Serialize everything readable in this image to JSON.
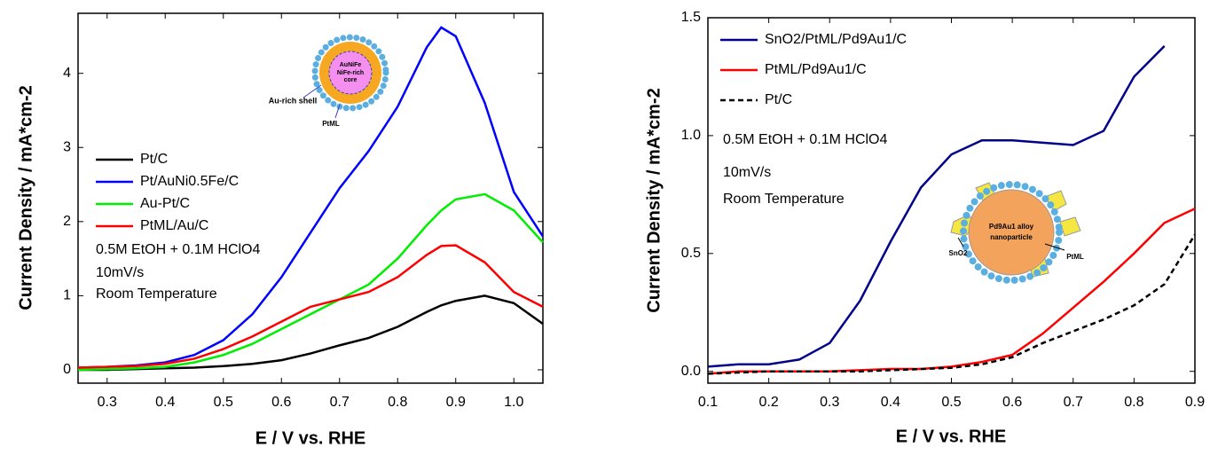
{
  "chart_data": [
    {
      "type": "line",
      "x_label": "E / V vs. RHE",
      "y_label": "Current Density / mA*cm-2",
      "x": [
        0.25,
        0.3,
        0.35,
        0.4,
        0.45,
        0.5,
        0.55,
        0.6,
        0.65,
        0.7,
        0.75,
        0.8,
        0.85,
        0.875,
        0.9,
        0.95,
        1.0,
        1.05
      ],
      "series": [
        {
          "name": "Pt/C",
          "color": "#000000",
          "values": [
            0.0,
            0.0,
            0.01,
            0.02,
            0.03,
            0.05,
            0.08,
            0.13,
            0.22,
            0.33,
            0.43,
            0.58,
            0.78,
            0.87,
            0.93,
            1.0,
            0.9,
            0.62
          ]
        },
        {
          "name": "Pt/AuNi0.5Fe/C",
          "color": "#0000ff",
          "values": [
            0.03,
            0.04,
            0.06,
            0.1,
            0.2,
            0.4,
            0.75,
            1.25,
            1.85,
            2.45,
            2.95,
            3.55,
            4.35,
            4.62,
            4.5,
            3.6,
            2.4,
            1.8
          ]
        },
        {
          "name": "Au-Pt/C",
          "color": "#00ee00",
          "values": [
            0.0,
            0.01,
            0.02,
            0.04,
            0.1,
            0.2,
            0.35,
            0.55,
            0.75,
            0.95,
            1.15,
            1.5,
            1.95,
            2.15,
            2.3,
            2.37,
            2.15,
            1.72
          ]
        },
        {
          "name": "PtML/Au/C",
          "color": "#ff0000",
          "values": [
            0.03,
            0.04,
            0.05,
            0.08,
            0.15,
            0.28,
            0.45,
            0.65,
            0.85,
            0.95,
            1.05,
            1.25,
            1.55,
            1.67,
            1.68,
            1.45,
            1.05,
            0.85
          ]
        }
      ],
      "xlim": [
        0.25,
        1.05
      ],
      "ylim": [
        -0.18,
        4.81
      ],
      "xticks": [
        0.3,
        0.4,
        0.5,
        0.6,
        0.7,
        0.8,
        0.9,
        {
          "value": 1,
          "label": "1.0"
        }
      ],
      "yticks": [
        0,
        1,
        2,
        3,
        4
      ],
      "legend": "center left",
      "annotations": [
        "0.5M EtOH + 0.1M HClO4",
        "10mV/s",
        "Room Temperature"
      ],
      "inset_labels": [
        "AuNiFe",
        "NiFe-rich",
        "core",
        "Au-rich shell",
        "PtML"
      ]
    },
    {
      "type": "line",
      "x_label": "E / V vs. RHE",
      "y_label": "Current Density / mA*cm-2",
      "x": [
        0.1,
        0.15,
        0.2,
        0.25,
        0.3,
        0.35,
        0.4,
        0.45,
        0.5,
        0.55,
        0.6,
        0.65,
        0.7,
        0.75,
        0.8,
        0.85,
        0.9
      ],
      "series": [
        {
          "name": "SnO2/PtML/Pd9Au1/C",
          "color": "#00008b",
          "values": [
            0.02,
            0.03,
            0.03,
            0.05,
            0.12,
            0.3,
            0.55,
            0.78,
            0.92,
            0.98,
            0.98,
            0.97,
            0.96,
            1.02,
            1.25,
            1.38,
            null
          ]
        },
        {
          "name": "PtML/Pd9Au1/C",
          "color": "#ff0000",
          "values": [
            -0.01,
            0,
            0,
            0,
            0,
            0.005,
            0.01,
            0.01,
            0.02,
            0.04,
            0.07,
            0.16,
            0.27,
            0.38,
            0.5,
            0.63,
            0.69
          ]
        },
        {
          "name": "Pt/C",
          "color": "#000000",
          "dash": true,
          "values": [
            -0.01,
            -0.005,
            0,
            0,
            0,
            0,
            0.005,
            0.01,
            0.015,
            0.03,
            0.06,
            0.12,
            0.17,
            0.22,
            0.28,
            0.37,
            0.58
          ]
        }
      ],
      "xlim": [
        0.1,
        0.9
      ],
      "ylim": [
        -0.05,
        1.5
      ],
      "xticks": [
        0.1,
        0.2,
        0.3,
        0.4,
        0.5,
        0.6,
        0.7,
        0.8,
        0.9
      ],
      "yticks": [
        {
          "value": 0,
          "label": "0.0"
        },
        0.5,
        {
          "value": 1,
          "label": "1.0"
        },
        1.5
      ],
      "legend": "upper left",
      "annotations": [
        "0.5M EtOH + 0.1M HClO4",
        "10mV/s",
        "Room Temperature"
      ],
      "inset_labels": [
        "Pd9Au1 alloy",
        "nanoparticle",
        "SnO2",
        "PtML"
      ]
    }
  ]
}
